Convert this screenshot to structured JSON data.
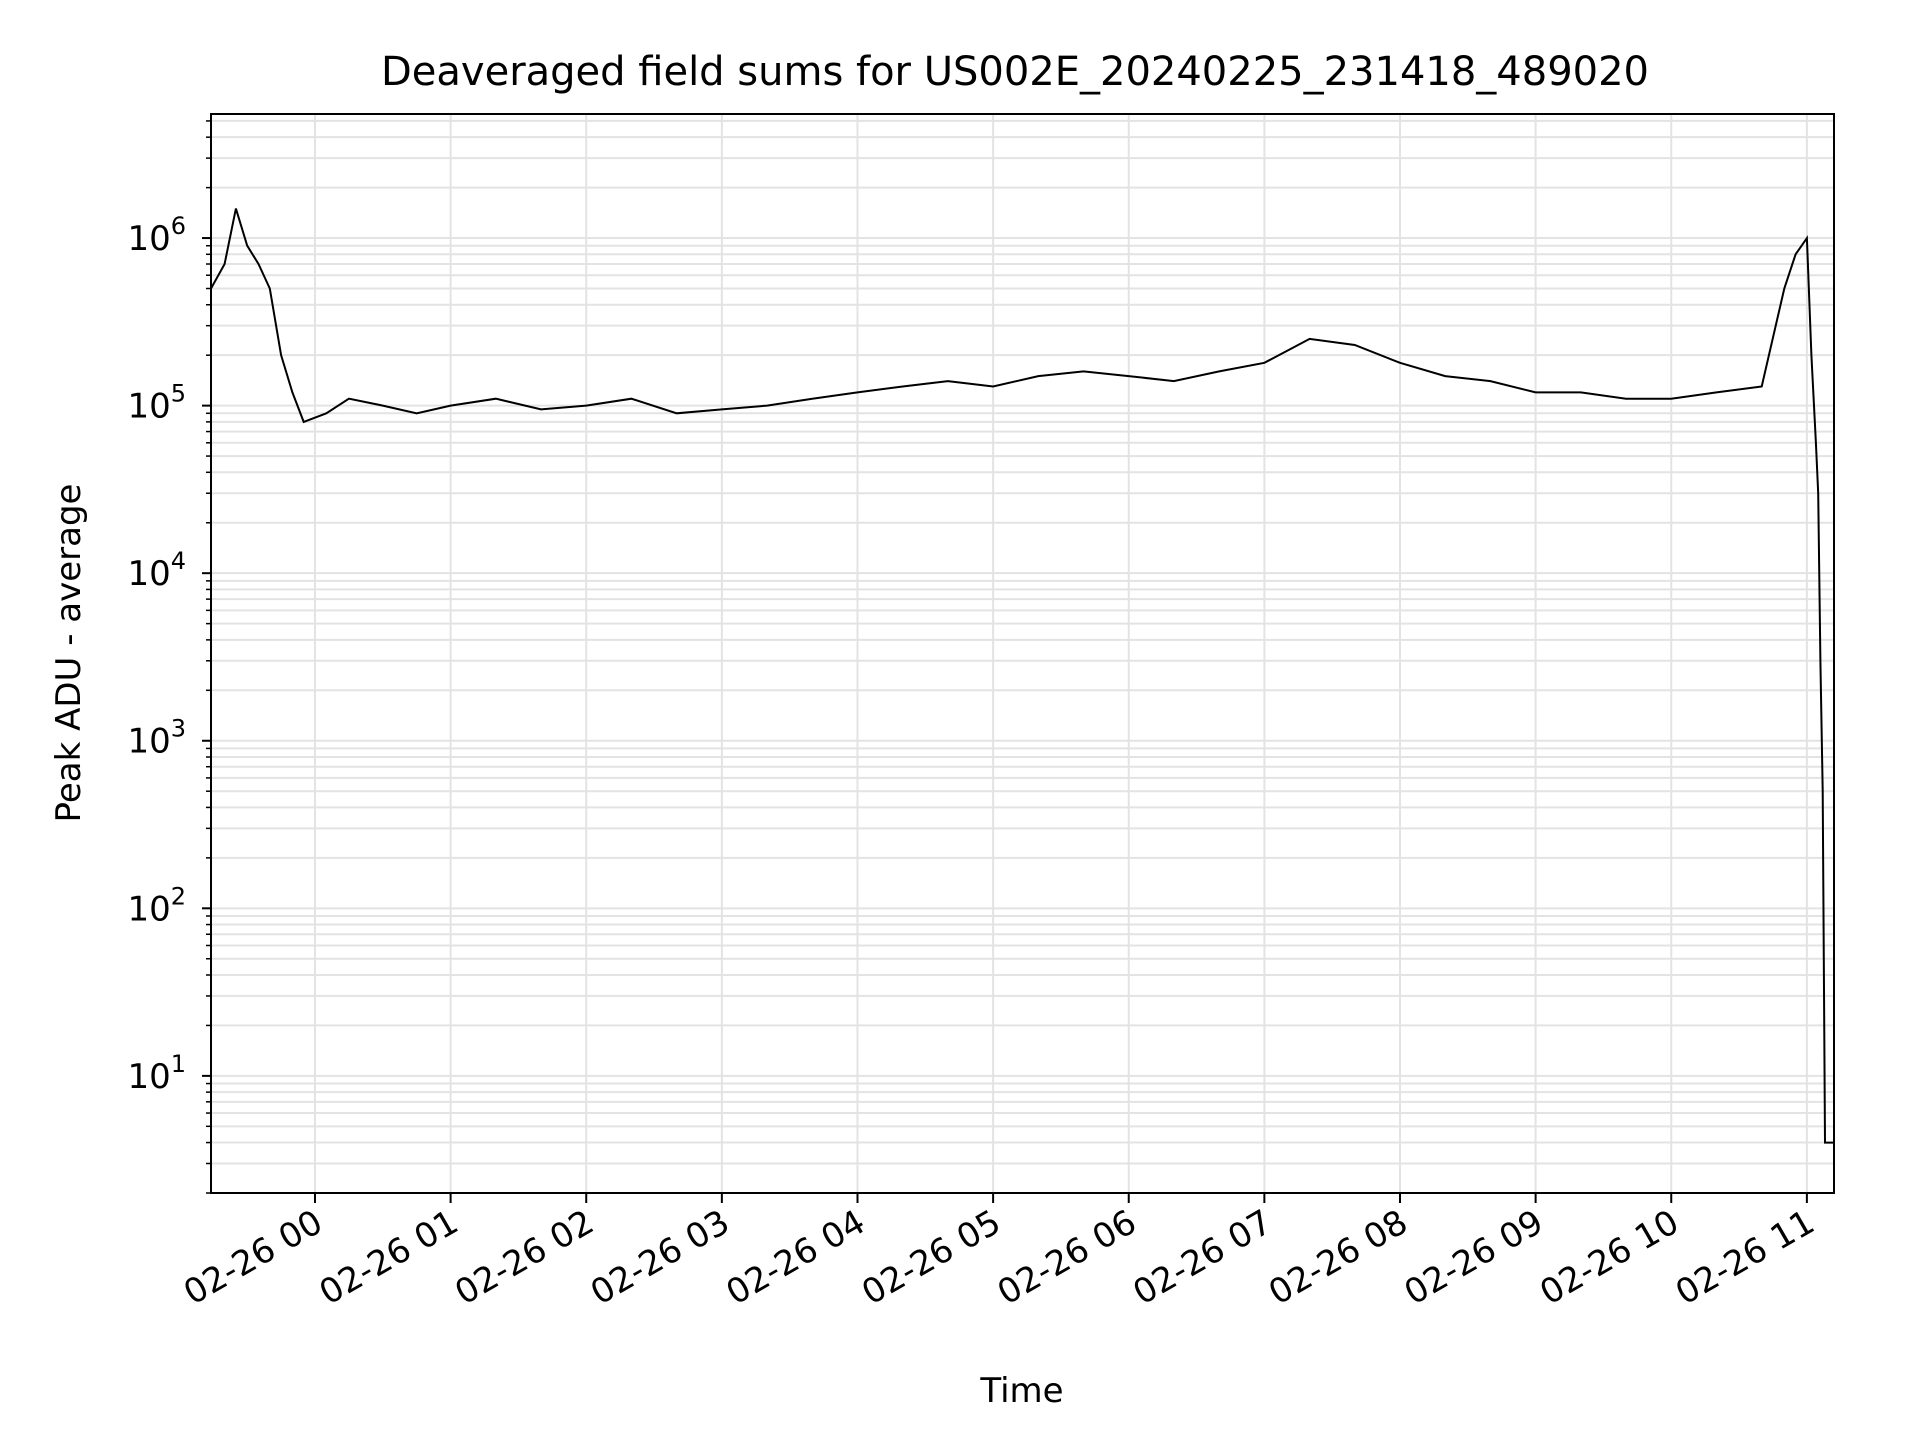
{
  "chart_data": {
    "type": "line",
    "title": "Deaveraged field sums for US002E_20240225_231418_489020",
    "xlabel": "Time",
    "ylabel": "Peak ADU - average",
    "yscale": "log",
    "ylim": [
      2,
      5500000
    ],
    "xlim": [
      "2024-02-25 23:14",
      "2024-02-26 11:12"
    ],
    "grid": true,
    "x_tick_labels": [
      "02-26 00",
      "02-26 01",
      "02-26 02",
      "02-26 03",
      "02-26 04",
      "02-26 05",
      "02-26 06",
      "02-26 07",
      "02-26 08",
      "02-26 09",
      "02-26 10",
      "02-26 11"
    ],
    "x_ticks": [
      "2024-02-26 00:00",
      "2024-02-26 01:00",
      "2024-02-26 02:00",
      "2024-02-26 03:00",
      "2024-02-26 04:00",
      "2024-02-26 05:00",
      "2024-02-26 06:00",
      "2024-02-26 07:00",
      "2024-02-26 08:00",
      "2024-02-26 09:00",
      "2024-02-26 10:00",
      "2024-02-26 11:00"
    ],
    "y_ticks": [
      {
        "base": "10",
        "exp": "1",
        "value": 10
      },
      {
        "base": "10",
        "exp": "2",
        "value": 100
      },
      {
        "base": "10",
        "exp": "3",
        "value": 1000
      },
      {
        "base": "10",
        "exp": "4",
        "value": 10000
      },
      {
        "base": "10",
        "exp": "5",
        "value": 100000
      },
      {
        "base": "10",
        "exp": "6",
        "value": 1000000
      }
    ],
    "line_color": "#000000",
    "grid_color": "#e3e3e3",
    "series": [
      {
        "x": [
          "2024-02-25 23:14",
          "2024-02-25 23:20",
          "2024-02-25 23:25",
          "2024-02-25 23:30",
          "2024-02-25 23:35",
          "2024-02-25 23:40",
          "2024-02-25 23:45",
          "2024-02-25 23:50",
          "2024-02-25 23:55",
          "2024-02-26 00:05",
          "2024-02-26 00:15",
          "2024-02-26 00:30",
          "2024-02-26 00:45",
          "2024-02-26 01:00",
          "2024-02-26 01:20",
          "2024-02-26 01:40",
          "2024-02-26 02:00",
          "2024-02-26 02:20",
          "2024-02-26 02:40",
          "2024-02-26 03:00",
          "2024-02-26 03:20",
          "2024-02-26 03:40",
          "2024-02-26 04:00",
          "2024-02-26 04:20",
          "2024-02-26 04:40",
          "2024-02-26 05:00",
          "2024-02-26 05:20",
          "2024-02-26 05:40",
          "2024-02-26 06:00",
          "2024-02-26 06:20",
          "2024-02-26 06:40",
          "2024-02-26 07:00",
          "2024-02-26 07:20",
          "2024-02-26 07:40",
          "2024-02-26 08:00",
          "2024-02-26 08:20",
          "2024-02-26 08:40",
          "2024-02-26 09:00",
          "2024-02-26 09:20",
          "2024-02-26 09:40",
          "2024-02-26 10:00",
          "2024-02-26 10:20",
          "2024-02-26 10:40",
          "2024-02-26 10:50",
          "2024-02-26 10:55",
          "2024-02-26 11:00",
          "2024-02-26 11:02",
          "2024-02-26 11:04",
          "2024-02-26 11:05",
          "2024-02-26 11:06",
          "2024-02-26 11:07",
          "2024-02-26 11:08",
          "2024-02-26 11:12"
        ],
        "y": [
          500000,
          700000,
          1500000,
          900000,
          700000,
          500000,
          200000,
          120000,
          80000,
          90000,
          110000,
          100000,
          90000,
          100000,
          110000,
          95000,
          100000,
          110000,
          90000,
          95000,
          100000,
          110000,
          120000,
          130000,
          140000,
          130000,
          150000,
          160000,
          150000,
          140000,
          160000,
          180000,
          250000,
          230000,
          180000,
          150000,
          140000,
          120000,
          120000,
          110000,
          110000,
          120000,
          130000,
          500000,
          800000,
          1000000,
          200000,
          60000,
          30000,
          3000,
          500,
          4,
          4
        ]
      }
    ]
  }
}
